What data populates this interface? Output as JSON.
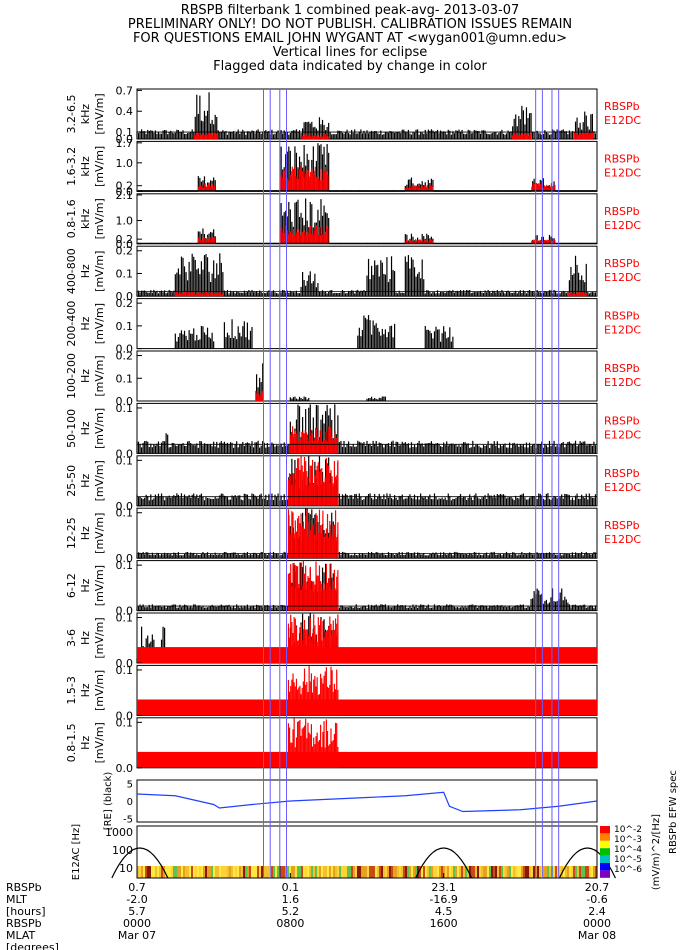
{
  "header": {
    "lines": [
      "RBSPB filterbank 1 combined peak-avg- 2013-03-07",
      "PRELIMINARY ONLY! DO NOT PUBLISH. CALIBRATION ISSUES REMAIN",
      "FOR QUESTIONS EMAIL JOHN WYGANT AT <wygan001@umn.edu>",
      "Vertical lines for eclipse",
      "Flagged data indicated by change in color"
    ]
  },
  "colors": {
    "peak": "#000000",
    "flag": "#ff0000",
    "eclipse": "#6a5cff",
    "label": "#ff0000",
    "bfield": "#2040ff"
  },
  "chart_data": {
    "type": "line",
    "x_axis": {
      "ticks": [
        {
          "hour": 0,
          "rbspb": "0.7",
          "mlt": "-2.0",
          "hours": "5.7",
          "rbspb2": "0000",
          "date": "Mar 07"
        },
        {
          "hour": 8,
          "rbspb": "0.1",
          "mlt": "1.6",
          "hours": "5.2",
          "rbspb2": "0800",
          "date": ""
        },
        {
          "hour": 16,
          "rbspb": "23.1",
          "mlt": "-16.9",
          "hours": "4.5",
          "rbspb2": "1600",
          "date": ""
        },
        {
          "hour": 24,
          "rbspb": "20.7",
          "mlt": "-0.6",
          "hours": "2.4",
          "rbspb2": "0000",
          "date": "Mar 08"
        }
      ],
      "row_labels": [
        "RBSPb",
        "MLT",
        "[hours]",
        "RBSPb",
        "MLAT",
        "[degrees]"
      ]
    },
    "eclipse_hours": [
      6.6,
      6.95,
      7.45,
      7.8,
      20.8,
      21.15,
      21.65,
      22.0
    ],
    "panels": [
      {
        "band": "3.2-6.5",
        "unit": "kHz",
        "yunit": "[mV/m]",
        "yticks": [
          "0.7",
          "0.4",
          "0.1",
          "0.0"
        ],
        "tickvals": [
          0.7,
          0.4,
          0.1,
          0.0
        ],
        "ymax": 0.72,
        "legend": [
          "RBSPb",
          "E12DC"
        ],
        "baseline": 0.1,
        "bursts": [
          [
            3.0,
            4.2,
            0.7
          ],
          [
            8.6,
            10.0,
            0.32
          ],
          [
            19.6,
            20.6,
            0.48
          ],
          [
            22.8,
            23.8,
            0.4
          ]
        ],
        "flag_bursts": [
          [
            3.0,
            4.2,
            0.12
          ],
          [
            8.6,
            10.0,
            0.08
          ],
          [
            19.6,
            20.6,
            0.1
          ],
          [
            22.8,
            23.8,
            0.12
          ]
        ]
      },
      {
        "band": "1.6-3.2",
        "unit": "kHz",
        "yunit": "[mV/m]",
        "yticks": [
          "1.7",
          "1.0",
          "0.2",
          "0.0"
        ],
        "tickvals": [
          1.7,
          1.0,
          0.2,
          0.0
        ],
        "ymax": 1.75,
        "legend": [
          "RBSPb",
          "E12DC"
        ],
        "baseline": 0.03,
        "bursts": [
          [
            3.2,
            4.1,
            0.55
          ],
          [
            7.5,
            10.0,
            1.7
          ],
          [
            14.0,
            15.5,
            0.5
          ],
          [
            20.6,
            21.8,
            0.5
          ]
        ],
        "flag_bursts": [
          [
            3.2,
            4.1,
            0.3
          ],
          [
            7.5,
            10.0,
            0.9
          ],
          [
            14.0,
            15.5,
            0.25
          ],
          [
            20.6,
            21.8,
            0.3
          ]
        ]
      },
      {
        "band": "0.8-1.6",
        "unit": "kHz",
        "yunit": "[mV/m]",
        "yticks": [
          "2.1",
          "1.0",
          "0.2",
          "0.0"
        ],
        "tickvals": [
          2.1,
          1.0,
          0.2,
          0.0
        ],
        "ymax": 2.15,
        "legend": [
          "RBSPb",
          "E12DC"
        ],
        "baseline": 0.03,
        "bursts": [
          [
            3.2,
            4.1,
            0.7
          ],
          [
            7.5,
            10.0,
            2.0
          ],
          [
            14.0,
            15.5,
            0.45
          ],
          [
            20.6,
            21.8,
            0.4
          ]
        ],
        "flag_bursts": [
          [
            3.2,
            4.1,
            0.3
          ],
          [
            7.5,
            10.0,
            0.8
          ],
          [
            14.0,
            15.5,
            0.2
          ],
          [
            20.6,
            21.8,
            0.2
          ]
        ]
      },
      {
        "band": "400-800",
        "unit": "Hz",
        "yunit": "[mV/m]",
        "yticks": [
          "0.2",
          "0.1",
          "0.0"
        ],
        "tickvals": [
          0.2,
          0.1,
          0.0
        ],
        "ymax": 0.22,
        "legend": [
          "RBSPb",
          "E12DC"
        ],
        "baseline": 0.02,
        "bursts": [
          [
            2.0,
            4.5,
            0.2
          ],
          [
            8.5,
            9.5,
            0.12
          ],
          [
            12.0,
            13.5,
            0.18
          ],
          [
            14.0,
            15.0,
            0.2
          ],
          [
            22.5,
            23.5,
            0.2
          ]
        ],
        "flag_bursts": [
          [
            2.0,
            4.5,
            0.02
          ],
          [
            22.5,
            23.5,
            0.02
          ]
        ]
      },
      {
        "band": "200-400",
        "unit": "Hz",
        "yunit": "[mV/m]",
        "yticks": [
          "0.2",
          "0.1",
          "0.0"
        ],
        "tickvals": [
          0.2,
          0.1,
          0.0
        ],
        "ymax": 0.22,
        "legend": [
          "RBSPb",
          "E12DC"
        ],
        "baseline": 0.0,
        "bursts": [
          [
            2.0,
            4.0,
            0.1
          ],
          [
            4.5,
            6.0,
            0.13
          ],
          [
            11.5,
            13.5,
            0.15
          ],
          [
            15.0,
            16.5,
            0.1
          ]
        ],
        "flag_bursts": []
      },
      {
        "band": "100-200",
        "unit": "Hz",
        "yunit": "[mV/m]",
        "yticks": [
          "0.2",
          "0.1",
          "0.0"
        ],
        "tickvals": [
          0.2,
          0.1,
          0.0
        ],
        "ymax": 0.22,
        "legend": [
          "RBSPb",
          "E12DC"
        ],
        "baseline": 0.0,
        "bursts": [
          [
            6.2,
            6.6,
            0.17
          ],
          [
            8.0,
            9.0,
            0.02
          ],
          [
            12.0,
            13.0,
            0.02
          ]
        ],
        "flag_bursts": [
          [
            6.2,
            6.6,
            0.05
          ]
        ]
      },
      {
        "band": "50-100",
        "unit": "Hz",
        "yunit": "[mV/m]",
        "yticks": [
          "0.1",
          "0.0"
        ],
        "tickvals": [
          0.1,
          0.0
        ],
        "ymax": 0.11,
        "legend": [
          "RBSPb",
          "E12DC"
        ],
        "baseline": 0.02,
        "bursts": [
          [
            8.0,
            10.5,
            0.11
          ],
          [
            1.5,
            1.6,
            0.06
          ]
        ],
        "flag_bursts": [
          [
            8.0,
            10.5,
            0.06
          ]
        ]
      },
      {
        "band": "25-50",
        "unit": "Hz",
        "yunit": "[mV/m]",
        "yticks": [
          "0.1",
          "0.0"
        ],
        "tickvals": [
          0.1,
          0.0
        ],
        "ymax": 0.11,
        "legend": [
          "RBSPb",
          "E12DC"
        ],
        "baseline": 0.02,
        "bursts": [
          [
            7.9,
            10.5,
            0.11
          ]
        ],
        "flag_bursts": [
          [
            7.9,
            10.5,
            0.11
          ]
        ]
      },
      {
        "band": "12-25",
        "unit": "Hz",
        "yunit": "[mV/m]",
        "yticks": [
          "0.1",
          "0.0"
        ],
        "tickvals": [
          0.1,
          0.0
        ],
        "ymax": 0.11,
        "legend": [
          "RBSPb",
          "E12DC"
        ],
        "baseline": 0.01,
        "bursts": [
          [
            7.9,
            10.5,
            0.11
          ]
        ],
        "flag_bursts": [
          [
            7.9,
            10.5,
            0.11
          ]
        ]
      },
      {
        "band": "6-12",
        "unit": "Hz",
        "yunit": "[mV/m]",
        "yticks": [
          "0.1",
          "0.0"
        ],
        "tickvals": [
          0.1,
          0.0
        ],
        "ymax": 0.11,
        "legend": [],
        "baseline": 0.01,
        "bursts": [
          [
            7.9,
            10.5,
            0.11
          ],
          [
            20.5,
            22.5,
            0.05
          ]
        ],
        "flag_bursts": [
          [
            7.9,
            10.5,
            0.11
          ]
        ]
      },
      {
        "band": "3-6",
        "unit": "Hz",
        "yunit": "[mV/m]",
        "yticks": [
          "0.1",
          "0.0"
        ],
        "tickvals": [
          0.1,
          0.0
        ],
        "ymax": 0.11,
        "legend": [],
        "baseline": 0.01,
        "bursts": [
          [
            7.9,
            10.5,
            0.11
          ],
          [
            0.2,
            1.5,
            0.08
          ]
        ],
        "flag_bursts": [
          [
            7.9,
            10.5,
            0.11
          ]
        ]
      },
      {
        "band": "1.5-3",
        "unit": "Hz",
        "yunit": "[mV/m]",
        "yticks": [
          "0.1",
          "0.0"
        ],
        "tickvals": [
          0.1,
          0.0
        ],
        "ymax": 0.11,
        "legend": [],
        "baseline": 0.0,
        "bursts": [],
        "flag_bursts": [
          [
            7.9,
            10.5,
            0.11
          ]
        ]
      },
      {
        "band": "0.8-1.5",
        "unit": "Hz",
        "yunit": "[mV/m]",
        "yticks": [
          "0.1",
          "0.0"
        ],
        "tickvals": [
          0.1,
          0.0
        ],
        "ymax": 0.11,
        "legend": [],
        "baseline": 0.0,
        "bursts": [],
        "flag_bursts": [
          [
            7.9,
            10.5,
            0.11
          ]
        ]
      }
    ],
    "bfield_panel": {
      "yticks": [
        "5",
        "0",
        "-5"
      ],
      "ylabel": "[RE] (black)",
      "series": [
        {
          "name": "",
          "color": "#2040ff",
          "x": [
            0,
            2,
            4,
            4.3,
            6,
            8,
            10,
            12,
            14,
            16,
            16.3,
            17,
            20,
            22,
            24
          ],
          "y": [
            2,
            1.5,
            -1,
            -2,
            -1,
            0,
            0.5,
            1,
            1.5,
            2.5,
            -1.5,
            -3,
            -2.5,
            -1.5,
            0
          ]
        }
      ]
    },
    "spec_panel": {
      "yticks": [
        "1000",
        "100",
        "10"
      ],
      "ylabel": "E12AC [Hz]",
      "colorbar": {
        "ticks": [
          "10^-2",
          "10^-3",
          "10^-4",
          "10^-5",
          "10^-6"
        ],
        "label": "(mV/m)^2/[Hz]",
        "title": "RBSPb EFW spec"
      }
    }
  }
}
